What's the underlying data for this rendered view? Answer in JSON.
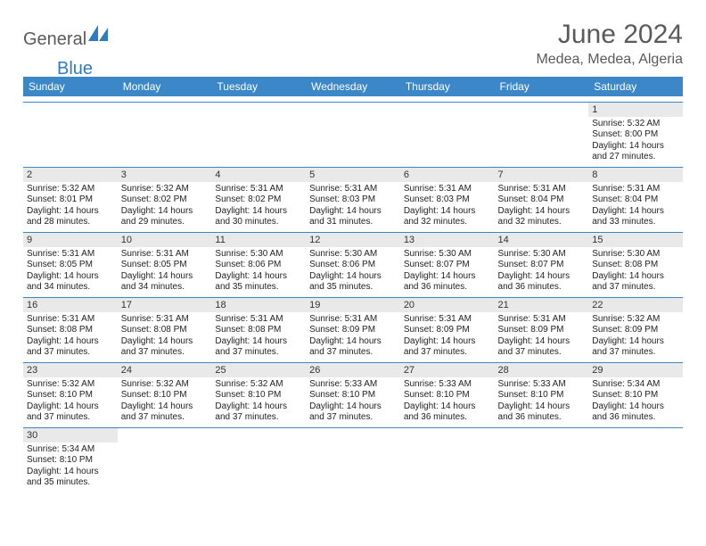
{
  "logo": {
    "part1": "General",
    "part2": "Blue",
    "shape_color": "#2f7bbf"
  },
  "title": "June 2024",
  "location": "Medea, Medea, Algeria",
  "colors": {
    "header_bg": "#3b87c8",
    "daynum_bg": "#e9e9e9",
    "rule": "#3b87c8"
  },
  "day_headers": [
    "Sunday",
    "Monday",
    "Tuesday",
    "Wednesday",
    "Thursday",
    "Friday",
    "Saturday"
  ],
  "weeks": [
    [
      null,
      null,
      null,
      null,
      null,
      null,
      {
        "n": "1",
        "sunrise": "5:32 AM",
        "sunset": "8:00 PM",
        "daylight": "14 hours and 27 minutes."
      }
    ],
    [
      {
        "n": "2",
        "sunrise": "5:32 AM",
        "sunset": "8:01 PM",
        "daylight": "14 hours and 28 minutes."
      },
      {
        "n": "3",
        "sunrise": "5:32 AM",
        "sunset": "8:02 PM",
        "daylight": "14 hours and 29 minutes."
      },
      {
        "n": "4",
        "sunrise": "5:31 AM",
        "sunset": "8:02 PM",
        "daylight": "14 hours and 30 minutes."
      },
      {
        "n": "5",
        "sunrise": "5:31 AM",
        "sunset": "8:03 PM",
        "daylight": "14 hours and 31 minutes."
      },
      {
        "n": "6",
        "sunrise": "5:31 AM",
        "sunset": "8:03 PM",
        "daylight": "14 hours and 32 minutes."
      },
      {
        "n": "7",
        "sunrise": "5:31 AM",
        "sunset": "8:04 PM",
        "daylight": "14 hours and 32 minutes."
      },
      {
        "n": "8",
        "sunrise": "5:31 AM",
        "sunset": "8:04 PM",
        "daylight": "14 hours and 33 minutes."
      }
    ],
    [
      {
        "n": "9",
        "sunrise": "5:31 AM",
        "sunset": "8:05 PM",
        "daylight": "14 hours and 34 minutes."
      },
      {
        "n": "10",
        "sunrise": "5:31 AM",
        "sunset": "8:05 PM",
        "daylight": "14 hours and 34 minutes."
      },
      {
        "n": "11",
        "sunrise": "5:30 AM",
        "sunset": "8:06 PM",
        "daylight": "14 hours and 35 minutes."
      },
      {
        "n": "12",
        "sunrise": "5:30 AM",
        "sunset": "8:06 PM",
        "daylight": "14 hours and 35 minutes."
      },
      {
        "n": "13",
        "sunrise": "5:30 AM",
        "sunset": "8:07 PM",
        "daylight": "14 hours and 36 minutes."
      },
      {
        "n": "14",
        "sunrise": "5:30 AM",
        "sunset": "8:07 PM",
        "daylight": "14 hours and 36 minutes."
      },
      {
        "n": "15",
        "sunrise": "5:30 AM",
        "sunset": "8:08 PM",
        "daylight": "14 hours and 37 minutes."
      }
    ],
    [
      {
        "n": "16",
        "sunrise": "5:31 AM",
        "sunset": "8:08 PM",
        "daylight": "14 hours and 37 minutes."
      },
      {
        "n": "17",
        "sunrise": "5:31 AM",
        "sunset": "8:08 PM",
        "daylight": "14 hours and 37 minutes."
      },
      {
        "n": "18",
        "sunrise": "5:31 AM",
        "sunset": "8:08 PM",
        "daylight": "14 hours and 37 minutes."
      },
      {
        "n": "19",
        "sunrise": "5:31 AM",
        "sunset": "8:09 PM",
        "daylight": "14 hours and 37 minutes."
      },
      {
        "n": "20",
        "sunrise": "5:31 AM",
        "sunset": "8:09 PM",
        "daylight": "14 hours and 37 minutes."
      },
      {
        "n": "21",
        "sunrise": "5:31 AM",
        "sunset": "8:09 PM",
        "daylight": "14 hours and 37 minutes."
      },
      {
        "n": "22",
        "sunrise": "5:32 AM",
        "sunset": "8:09 PM",
        "daylight": "14 hours and 37 minutes."
      }
    ],
    [
      {
        "n": "23",
        "sunrise": "5:32 AM",
        "sunset": "8:10 PM",
        "daylight": "14 hours and 37 minutes."
      },
      {
        "n": "24",
        "sunrise": "5:32 AM",
        "sunset": "8:10 PM",
        "daylight": "14 hours and 37 minutes."
      },
      {
        "n": "25",
        "sunrise": "5:32 AM",
        "sunset": "8:10 PM",
        "daylight": "14 hours and 37 minutes."
      },
      {
        "n": "26",
        "sunrise": "5:33 AM",
        "sunset": "8:10 PM",
        "daylight": "14 hours and 37 minutes."
      },
      {
        "n": "27",
        "sunrise": "5:33 AM",
        "sunset": "8:10 PM",
        "daylight": "14 hours and 36 minutes."
      },
      {
        "n": "28",
        "sunrise": "5:33 AM",
        "sunset": "8:10 PM",
        "daylight": "14 hours and 36 minutes."
      },
      {
        "n": "29",
        "sunrise": "5:34 AM",
        "sunset": "8:10 PM",
        "daylight": "14 hours and 36 minutes."
      }
    ],
    [
      {
        "n": "30",
        "sunrise": "5:34 AM",
        "sunset": "8:10 PM",
        "daylight": "14 hours and 35 minutes."
      },
      null,
      null,
      null,
      null,
      null,
      null
    ]
  ],
  "labels": {
    "sunrise": "Sunrise: ",
    "sunset": "Sunset: ",
    "daylight": "Daylight: "
  }
}
